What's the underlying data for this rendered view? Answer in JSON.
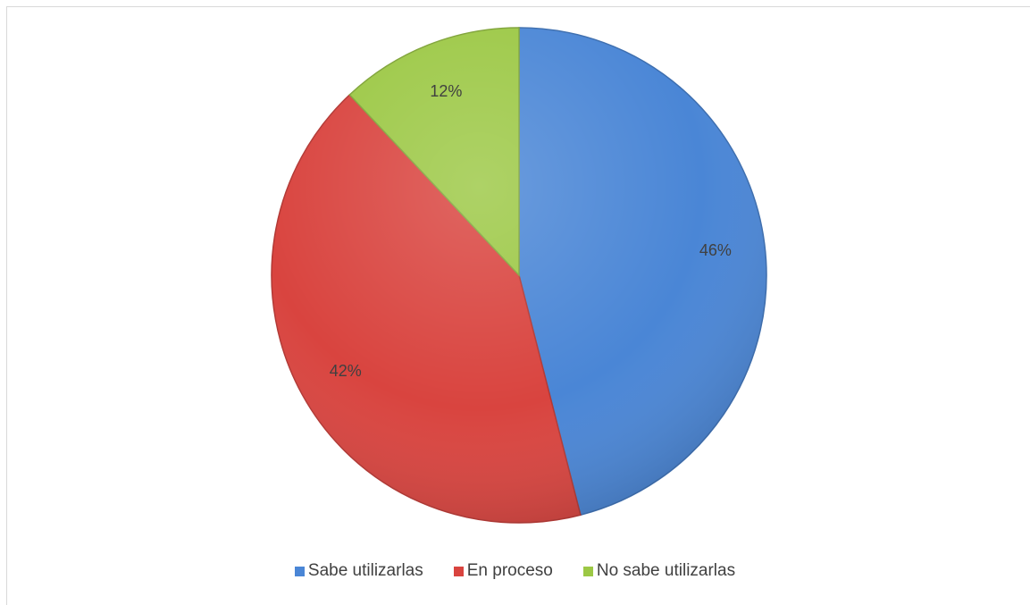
{
  "chart_data": {
    "type": "pie",
    "title": "",
    "slices": [
      {
        "name": "Sabe utilizarlas",
        "value": 46,
        "label": "46%",
        "color": "#4a86d6"
      },
      {
        "name": "En proceso",
        "value": 42,
        "label": "42%",
        "color": "#d9443f"
      },
      {
        "name": "No sabe utilizarlas",
        "value": 12,
        "label": "12%",
        "color": "#9cc845"
      }
    ],
    "start_angle": "12 o'clock",
    "direction": "clockwise",
    "legend_position": "bottom"
  }
}
